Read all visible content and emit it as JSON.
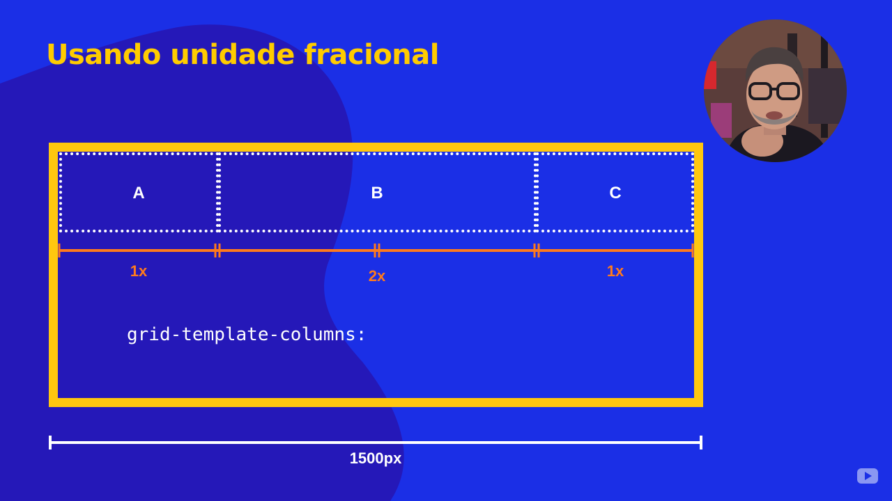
{
  "slide": {
    "title": "Usando unidade fracional",
    "code_line": "grid-template-columns:",
    "total_width_label": "1500px"
  },
  "grid": {
    "columns": [
      {
        "label": "A",
        "fraction_label": "1x",
        "fr": 1
      },
      {
        "label": "B",
        "fraction_label": "2x",
        "fr": 2
      },
      {
        "label": "C",
        "fraction_label": "1x",
        "fr": 1
      }
    ]
  },
  "colors": {
    "background": "#1b2fe6",
    "background_shape": "#2518b8",
    "title": "#ffcc00",
    "frame": "#ffc70f",
    "measure_line": "#ff7a1c",
    "cell_border": "#ffffff",
    "text": "#ffffff"
  },
  "icons": {
    "webcam": "presenter-webcam",
    "corner_badge": "youtube-play-icon"
  }
}
